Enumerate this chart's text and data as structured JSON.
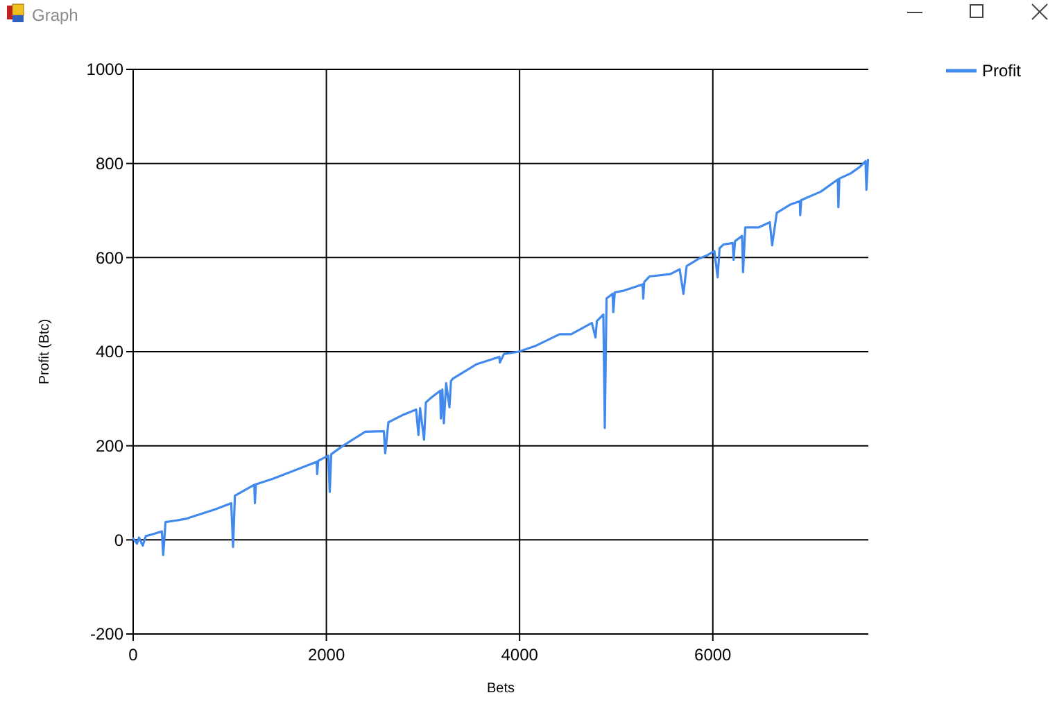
{
  "chart_data": {
    "type": "line",
    "title": "Graph",
    "xlabel": "Bets",
    "ylabel": "Profit (Btc)",
    "x": [
      0,
      40,
      60,
      100,
      130,
      200,
      297,
      311,
      335,
      440,
      550,
      700,
      850,
      1015,
      1034,
      1053,
      1254,
      1260,
      1270,
      1446,
      1637,
      1900,
      1905,
      1915,
      2020,
      2035,
      2050,
      2164,
      2403,
      2595,
      2609,
      2642,
      2786,
      2929,
      2953,
      2970,
      3011,
      3030,
      3072,
      3178,
      3185,
      3200,
      3216,
      3240,
      3274,
      3290,
      3312,
      3551,
      3791,
      3796,
      3838,
      3991,
      4173,
      4413,
      4533,
      4748,
      4786,
      4800,
      4867,
      4882,
      4900,
      4963,
      4970,
      4985,
      5083,
      5274,
      5280,
      5290,
      5346,
      5561,
      5657,
      5696,
      5729,
      5849,
      5944,
      6016,
      6050,
      6070,
      6112,
      6207,
      6215,
      6230,
      6303,
      6313,
      6336,
      6471,
      6590,
      6614,
      6662,
      6805,
      6901,
      6905,
      6915,
      7117,
      7294,
      7300,
      7310,
      7428,
      7524,
      7581,
      7590,
      7606
    ],
    "series": [
      {
        "name": "Profit",
        "color": "#4189ed",
        "values": [
          3,
          -8,
          5,
          -12,
          8,
          12,
          18,
          -32,
          38,
          41,
          45,
          55,
          65,
          78,
          -15,
          94,
          117,
          78,
          118,
          130,
          145,
          166,
          140,
          168,
          179,
          102,
          182,
          199,
          230,
          231,
          184,
          250,
          265,
          277,
          223,
          280,
          213,
          292,
          300,
          317,
          258,
          320,
          248,
          333,
          282,
          338,
          343,
          373,
          389,
          377,
          395,
          400,
          413,
          437,
          437,
          461,
          430,
          465,
          479,
          238,
          513,
          523,
          484,
          526,
          530,
          543,
          513,
          548,
          560,
          565,
          575,
          523,
          582,
          597,
          605,
          614,
          558,
          620,
          628,
          631,
          595,
          635,
          646,
          569,
          664,
          664,
          675,
          626,
          695,
          713,
          720,
          690,
          722,
          740,
          766,
          707,
          768,
          779,
          793,
          805,
          744,
          808
        ]
      }
    ],
    "xlim": [
      0,
      7610
    ],
    "ylim": [
      -200,
      1000
    ],
    "xticks": [
      0,
      2000,
      4000,
      6000
    ],
    "yticks": [
      -200,
      0,
      200,
      400,
      600,
      800,
      1000
    ],
    "grid": true,
    "legend": "top right"
  }
}
